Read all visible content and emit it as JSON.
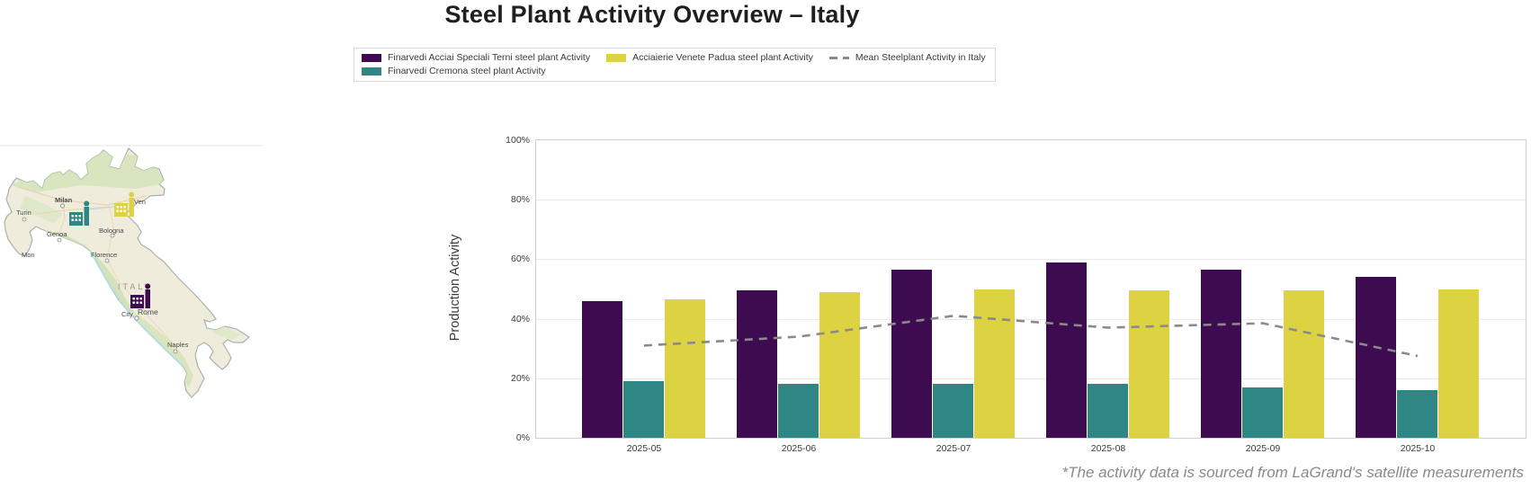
{
  "title": "Steel Plant Activity Overview – Italy",
  "footnote": "*The activity data is sourced from LaGrand's satellite measurements",
  "colors": {
    "terni_purple": "#3d0b50",
    "cremona_teal": "#2e8784",
    "padua_yellow": "#ddd241",
    "mean_gray": "#8a8a8a",
    "grid_gray": "#e9e9e9",
    "map_land": "#efecdb",
    "map_green": "#d4e4ba",
    "map_coast_blue": "#b4dcec"
  },
  "legend": {
    "items": [
      {
        "label": "Finarvedi Acciai Speciali Terni steel plant Activity",
        "type": "bar",
        "color": "#3d0b50"
      },
      {
        "label": "Finarvedi Cremona steel plant Activity",
        "type": "bar",
        "color": "#2e8784"
      },
      {
        "label": "Acciaierie Venete Padua steel plant Activity",
        "type": "bar",
        "color": "#ddd241"
      },
      {
        "label": "Mean Steelplant Activity in Italy",
        "type": "line",
        "color": "#8a8a8a"
      }
    ]
  },
  "map": {
    "region_label": "ITALY",
    "cities": [
      "Milan",
      "Turin",
      "Genoa",
      "Bologna",
      "Florence",
      "Rome",
      "City",
      "Naples",
      "Mon",
      "Ven"
    ],
    "plant_icons": [
      {
        "name": "factory-icon-cremona",
        "color": "#2e8784"
      },
      {
        "name": "factory-icon-padua",
        "color": "#ddd241"
      },
      {
        "name": "factory-icon-terni",
        "color": "#3d0b50"
      }
    ]
  },
  "chart_data": {
    "type": "bar",
    "title": "",
    "xlabel": "",
    "ylabel": "Production Activity",
    "ylim": [
      0,
      100
    ],
    "grid": true,
    "legend_position": "top",
    "categories": [
      "2025-05",
      "2025-06",
      "2025-07",
      "2025-08",
      "2025-09",
      "2025-10"
    ],
    "ytick_values": [
      0,
      20,
      40,
      60,
      80,
      100
    ],
    "ytick_labels": [
      "0%",
      "20%",
      "40%",
      "60%",
      "80%",
      "100%"
    ],
    "series": [
      {
        "key": "terni",
        "name": "Finarvedi Acciai Speciali Terni steel plant Activity",
        "color": "#3d0b50",
        "values": [
          46,
          49.5,
          56.5,
          59,
          56.5,
          54
        ]
      },
      {
        "key": "cremona",
        "name": "Finarvedi Cremona steel plant Activity",
        "color": "#2e8784",
        "values": [
          19,
          18,
          18,
          18,
          17,
          16
        ]
      },
      {
        "key": "padua",
        "name": "Acciaierie Venete Padua steel plant Activity",
        "color": "#ddd241",
        "values": [
          46.5,
          49,
          50,
          49.5,
          49.5,
          50
        ]
      }
    ],
    "mean_line": {
      "key": "mean",
      "name": "Mean Steelplant Activity in Italy",
      "style": "dashed",
      "color": "#8a8a8a",
      "values": [
        31,
        34,
        41,
        37,
        38.5,
        27.5
      ]
    }
  }
}
